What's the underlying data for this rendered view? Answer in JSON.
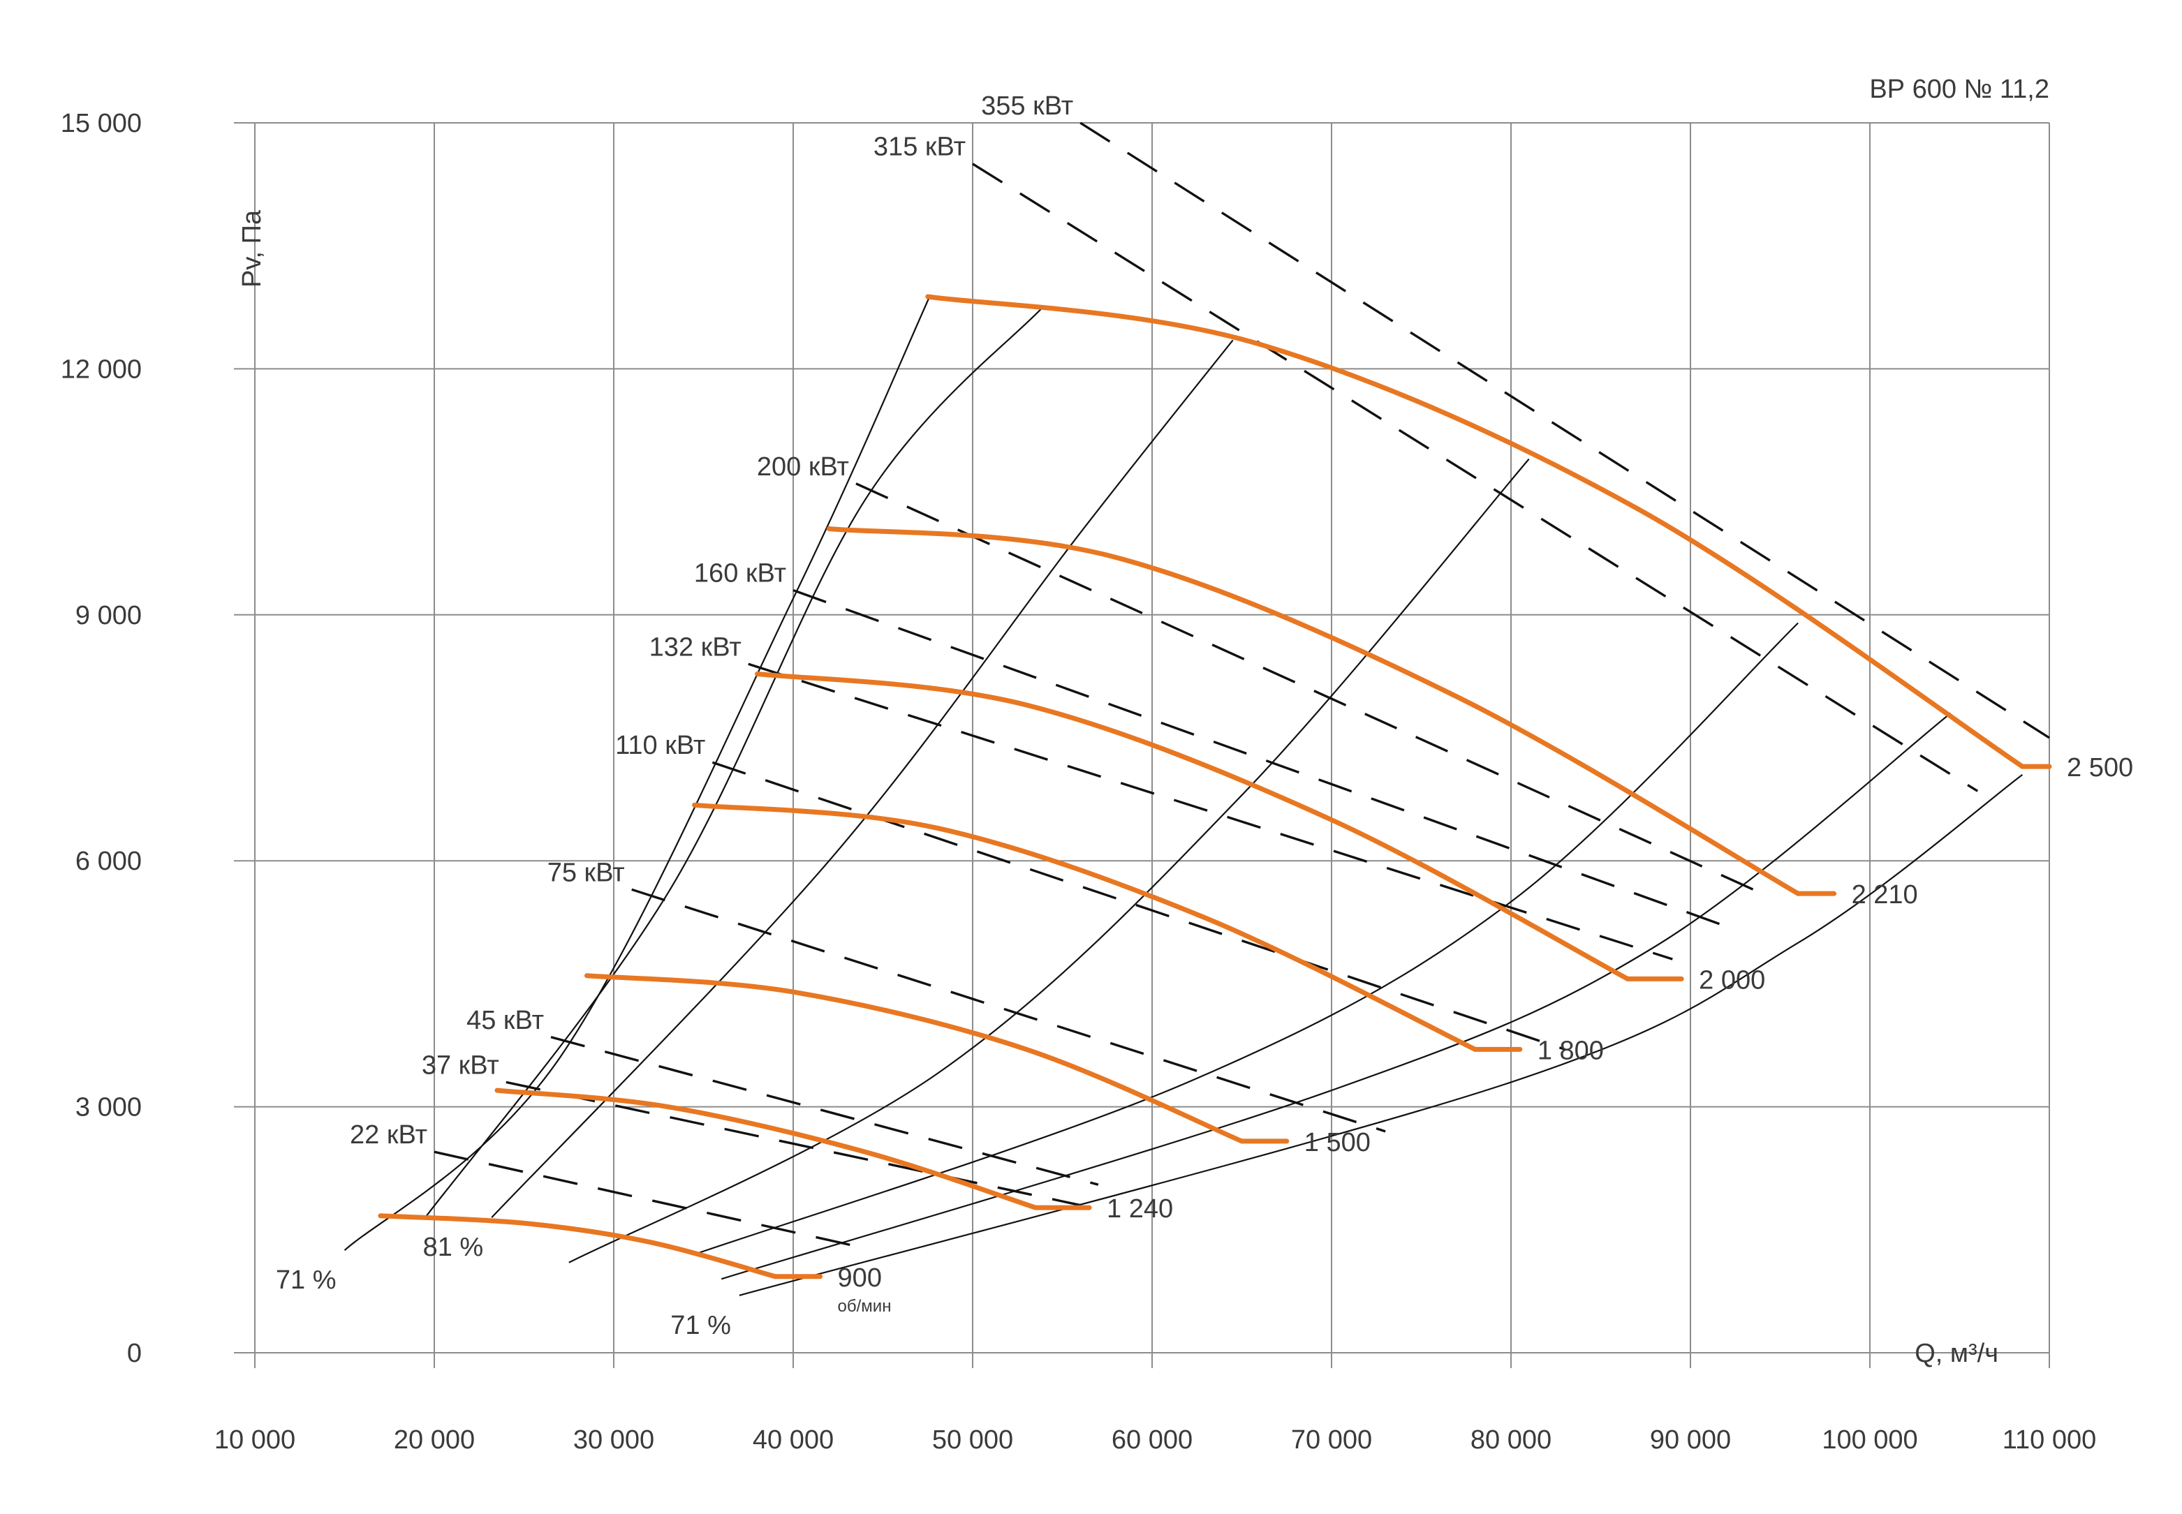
{
  "chart_data": {
    "type": "line",
    "title": "ВР 600 № 11,2",
    "xlabel": "Q, м³/ч",
    "ylabel": "Pv, Па",
    "xlim": [
      10000,
      110000
    ],
    "ylim": [
      0,
      15000
    ],
    "grid": true,
    "x_ticks": [
      10000,
      20000,
      30000,
      40000,
      50000,
      60000,
      70000,
      80000,
      90000,
      100000,
      110000
    ],
    "x_tick_labels": [
      "10 000",
      "20 000",
      "30 000",
      "40 000",
      "50 000",
      "60 000",
      "70 000",
      "80 000",
      "90 000",
      "100 000",
      "110 000"
    ],
    "y_ticks": [
      0,
      3000,
      6000,
      9000,
      12000,
      15000
    ],
    "y_tick_labels": [
      "0",
      "3 000",
      "6 000",
      "9 000",
      "12 000",
      "15 000"
    ],
    "colors": {
      "speed_curve": "#E87722",
      "power_line": "#111111",
      "efficiency_line": "#111111",
      "grid": "#8C8C8C",
      "text": "#3A3A3A"
    },
    "speed_unit": "об/мин",
    "speed_curves": [
      {
        "name": "900",
        "points": [
          [
            17000,
            1670
          ],
          [
            25000,
            1580
          ],
          [
            32000,
            1350
          ],
          [
            39000,
            930
          ]
        ],
        "end": [
          41500,
          930
        ]
      },
      {
        "name": "1 240",
        "points": [
          [
            23500,
            3200
          ],
          [
            33000,
            3000
          ],
          [
            44000,
            2450
          ],
          [
            53500,
            1770
          ]
        ],
        "end": [
          56500,
          1770
        ]
      },
      {
        "name": "1 500",
        "points": [
          [
            28500,
            4600
          ],
          [
            40000,
            4400
          ],
          [
            53000,
            3700
          ],
          [
            65000,
            2580
          ]
        ],
        "end": [
          67500,
          2580
        ]
      },
      {
        "name": "1 800",
        "points": [
          [
            34500,
            6680
          ],
          [
            48000,
            6400
          ],
          [
            63000,
            5300
          ],
          [
            78000,
            3700
          ]
        ],
        "end": [
          80500,
          3700
        ]
      },
      {
        "name": "2 000",
        "points": [
          [
            38000,
            8280
          ],
          [
            53000,
            7900
          ],
          [
            70000,
            6500
          ],
          [
            86500,
            4560
          ]
        ],
        "end": [
          89500,
          4560
        ]
      },
      {
        "name": "2 210",
        "points": [
          [
            42000,
            10050
          ],
          [
            58000,
            9700
          ],
          [
            77000,
            8000
          ],
          [
            96000,
            5600
          ]
        ],
        "end": [
          98000,
          5600
        ]
      },
      {
        "name": "2 500",
        "points": [
          [
            47500,
            12880
          ],
          [
            66000,
            12300
          ],
          [
            87000,
            10300
          ],
          [
            108500,
            7150
          ]
        ],
        "end": [
          110000,
          7150
        ]
      }
    ],
    "power_lines": [
      {
        "name": "22 кВт",
        "from": [
          20000,
          2450
        ],
        "to": [
          43500,
          1300
        ]
      },
      {
        "name": "37 кВт",
        "from": [
          24000,
          3300
        ],
        "to": [
          56000,
          1800
        ]
      },
      {
        "name": "45 кВт",
        "from": [
          26500,
          3850
        ],
        "to": [
          57000,
          2050
        ]
      },
      {
        "name": "75 кВт",
        "from": [
          31000,
          5650
        ],
        "to": [
          73000,
          2700
        ]
      },
      {
        "name": "110 кВт",
        "from": [
          35500,
          7200
        ],
        "to": [
          83000,
          3700
        ]
      },
      {
        "name": "132 кВт",
        "from": [
          37500,
          8400
        ],
        "to": [
          89000,
          4800
        ]
      },
      {
        "name": "160 кВт",
        "from": [
          40000,
          9300
        ],
        "to": [
          92000,
          5200
        ]
      },
      {
        "name": "200 кВт",
        "from": [
          43500,
          10600
        ],
        "to": [
          94000,
          5600
        ]
      },
      {
        "name": "315 кВт",
        "from": [
          50000,
          14500
        ],
        "to": [
          106000,
          6850
        ]
      },
      {
        "name": "355 кВт",
        "from": [
          56000,
          15000
        ],
        "to": [
          110000,
          7500
        ]
      }
    ],
    "efficiency_lines": [
      {
        "name": "71 %",
        "points": [
          [
            15000,
            1250
          ],
          [
            27000,
            3600
          ],
          [
            40000,
            9200
          ],
          [
            47600,
            12880
          ]
        ]
      },
      {
        "name": "",
        "points": [
          [
            19500,
            1650
          ],
          [
            33000,
            5600
          ],
          [
            44000,
            10400
          ],
          [
            53900,
            12750
          ]
        ]
      },
      {
        "name": "81 %",
        "points": [
          [
            23200,
            1650
          ],
          [
            42000,
            6000
          ],
          [
            56000,
            10000
          ],
          [
            64500,
            12350
          ]
        ]
      },
      {
        "name": "",
        "points": [
          [
            27500,
            1100
          ],
          [
            48000,
            3400
          ],
          [
            65000,
            6800
          ],
          [
            81000,
            10900
          ]
        ]
      },
      {
        "name": "",
        "points": [
          [
            34500,
            1200
          ],
          [
            62000,
            3300
          ],
          [
            80000,
            5500
          ],
          [
            96000,
            8900
          ]
        ]
      },
      {
        "name": "",
        "points": [
          [
            36000,
            900
          ],
          [
            70000,
            3200
          ],
          [
            88000,
            4950
          ],
          [
            104500,
            7800
          ]
        ]
      },
      {
        "name": "71 %",
        "points": [
          [
            37000,
            700
          ],
          [
            80000,
            3300
          ],
          [
            96000,
            5000
          ],
          [
            108500,
            7050
          ]
        ]
      }
    ]
  }
}
